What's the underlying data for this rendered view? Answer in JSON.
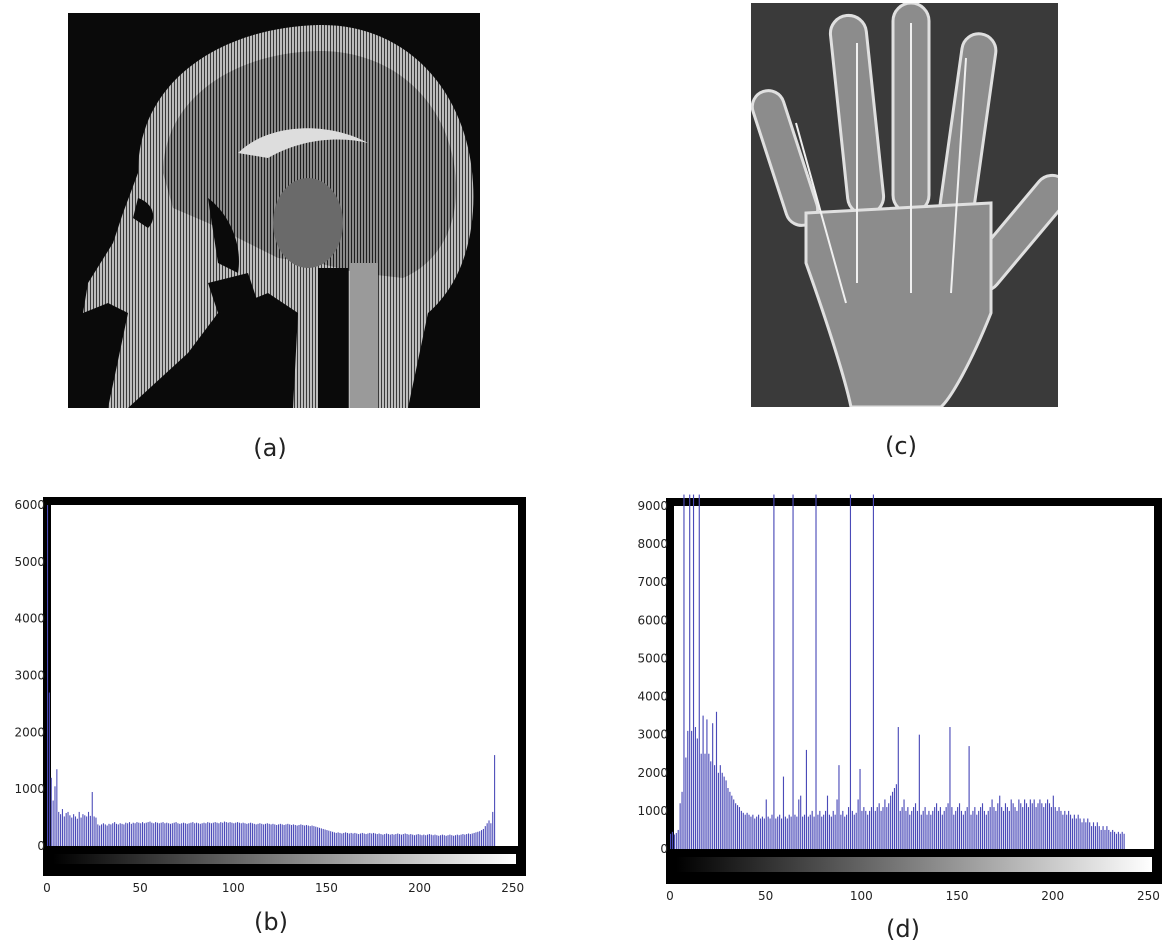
{
  "captions": {
    "a": "(a)",
    "b": "(b)",
    "c": "(c)",
    "d": "(d)"
  },
  "images": {
    "a": {
      "name": "mri-sagittal-head-image",
      "bg": "#0a0a0a",
      "fg": "#cfcfcf"
    },
    "c": {
      "name": "hand-xray-image",
      "bg": "#3a3a3a",
      "fg": "#d8d8d8"
    }
  },
  "colors": {
    "bar": "#4a4ab8",
    "frame": "#000000"
  },
  "chart_data": [
    {
      "id": "b",
      "type": "bar",
      "xlim": [
        0,
        255
      ],
      "ylim": [
        0,
        6000
      ],
      "xticks": [
        0,
        50,
        100,
        150,
        200,
        250
      ],
      "yticks": [
        0,
        1000,
        2000,
        3000,
        4000,
        5000,
        6000
      ],
      "colorbar": "grayscale",
      "values": [
        6000,
        2700,
        1200,
        800,
        1050,
        1350,
        600,
        560,
        650,
        520,
        580,
        600,
        540,
        500,
        560,
        520,
        480,
        600,
        500,
        560,
        540,
        520,
        600,
        530,
        950,
        520,
        500,
        380,
        360,
        380,
        400,
        380,
        360,
        390,
        380,
        400,
        420,
        390,
        380,
        400,
        390,
        380,
        410,
        400,
        420,
        390,
        410,
        400,
        420,
        410,
        400,
        420,
        400,
        410,
        420,
        430,
        410,
        400,
        420,
        410,
        400,
        410,
        420,
        400,
        410,
        400,
        390,
        400,
        410,
        420,
        400,
        390,
        400,
        410,
        400,
        390,
        400,
        410,
        420,
        400,
        410,
        400,
        390,
        400,
        410,
        400,
        420,
        410,
        400,
        410,
        420,
        410,
        400,
        420,
        410,
        430,
        420,
        410,
        420,
        410,
        400,
        410,
        420,
        410,
        400,
        410,
        400,
        390,
        400,
        410,
        400,
        390,
        380,
        390,
        400,
        390,
        380,
        390,
        400,
        390,
        380,
        390,
        380,
        370,
        380,
        390,
        380,
        370,
        380,
        390,
        380,
        370,
        380,
        370,
        360,
        370,
        380,
        370,
        360,
        370,
        360,
        350,
        360,
        350,
        340,
        330,
        320,
        310,
        300,
        290,
        280,
        270,
        260,
        250,
        240,
        230,
        240,
        230,
        220,
        230,
        240,
        230,
        220,
        230,
        220,
        230,
        220,
        210,
        220,
        230,
        220,
        210,
        220,
        230,
        220,
        230,
        220,
        210,
        220,
        210,
        200,
        210,
        220,
        210,
        200,
        210,
        200,
        210,
        220,
        210,
        200,
        210,
        220,
        210,
        200,
        210,
        200,
        190,
        200,
        210,
        200,
        190,
        200,
        190,
        200,
        210,
        200,
        190,
        200,
        190,
        180,
        190,
        200,
        190,
        180,
        190,
        200,
        190,
        180,
        190,
        200,
        190,
        200,
        210,
        200,
        210,
        220,
        210,
        220,
        230,
        240,
        250,
        260,
        280,
        300,
        350,
        400,
        450,
        400,
        600,
        1600
      ]
    },
    {
      "id": "d",
      "type": "bar",
      "xlim": [
        0,
        255
      ],
      "ylim": [
        0,
        9000
      ],
      "xticks": [
        0,
        50,
        100,
        150,
        200,
        250
      ],
      "yticks": [
        0,
        1000,
        2000,
        3000,
        4000,
        5000,
        6000,
        7000,
        8000,
        9000
      ],
      "colorbar": "grayscale",
      "values": [
        400,
        450,
        380,
        420,
        500,
        1200,
        1500,
        9300,
        2400,
        3100,
        9300,
        3100,
        9300,
        3200,
        2900,
        9300,
        2500,
        3500,
        2500,
        3400,
        2500,
        2300,
        3300,
        2200,
        3600,
        2000,
        2200,
        2000,
        1900,
        1800,
        1600,
        1500,
        1400,
        1300,
        1200,
        1150,
        1100,
        1000,
        950,
        900,
        950,
        900,
        850,
        900,
        800,
        850,
        900,
        800,
        850,
        800,
        1300,
        850,
        800,
        900,
        9300,
        800,
        850,
        900,
        800,
        1900,
        850,
        800,
        900,
        850,
        9300,
        900,
        850,
        1300,
        1400,
        850,
        900,
        2600,
        850,
        900,
        1000,
        850,
        9300,
        900,
        1000,
        850,
        900,
        1000,
        1400,
        900,
        850,
        1000,
        900,
        1300,
        2200,
        900,
        1000,
        850,
        900,
        1100,
        9300,
        1000,
        900,
        950,
        1300,
        2100,
        1000,
        1100,
        1000,
        900,
        1000,
        1100,
        9300,
        1000,
        1100,
        1200,
        1000,
        1100,
        1300,
        1100,
        1200,
        1400,
        1500,
        1600,
        1700,
        3200,
        1000,
        1100,
        1300,
        1000,
        1100,
        900,
        1000,
        1100,
        1200,
        1000,
        3000,
        900,
        1000,
        1100,
        900,
        1000,
        900,
        1000,
        1100,
        1200,
        1000,
        1100,
        900,
        1000,
        1100,
        1200,
        3200,
        1100,
        900,
        1000,
        1100,
        1200,
        1000,
        900,
        1000,
        1100,
        2700,
        900,
        1000,
        1100,
        900,
        1000,
        1100,
        1200,
        1000,
        900,
        1000,
        1100,
        1300,
        1100,
        1000,
        1200,
        1400,
        1100,
        1000,
        1200,
        1100,
        1000,
        1300,
        1200,
        1100,
        1000,
        1300,
        1200,
        1100,
        1300,
        1200,
        1100,
        1300,
        1200,
        1300,
        1100,
        1200,
        1300,
        1200,
        1100,
        1200,
        1300,
        1200,
        1100,
        1400,
        1100,
        1000,
        1100,
        1000,
        900,
        1000,
        900,
        1000,
        900,
        800,
        900,
        800,
        900,
        800,
        700,
        800,
        700,
        800,
        700,
        600,
        700,
        600,
        700,
        600,
        500,
        600,
        500,
        600,
        500,
        450,
        500,
        450,
        400,
        450,
        400,
        450,
        400
      ]
    }
  ]
}
